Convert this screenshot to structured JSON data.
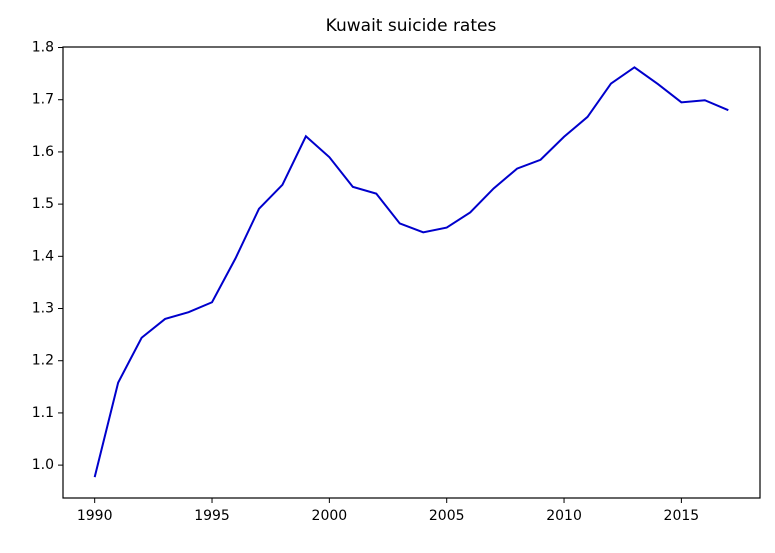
{
  "chart_data": {
    "type": "line",
    "title": "Kuwait suicide rates",
    "x": [
      1990,
      1991,
      1992,
      1993,
      1994,
      1995,
      1996,
      1997,
      1998,
      1999,
      2000,
      2001,
      2002,
      2003,
      2004,
      2005,
      2006,
      2007,
      2008,
      2009,
      2010,
      2011,
      2012,
      2013,
      2014,
      2015,
      2016,
      2017
    ],
    "series": [
      {
        "name": "Kuwait",
        "color": "#0000cc",
        "values": [
          0.977,
          1.158,
          1.244,
          1.28,
          1.293,
          1.312,
          1.396,
          1.491,
          1.537,
          1.63,
          1.59,
          1.533,
          1.52,
          1.463,
          1.446,
          1.455,
          1.484,
          1.53,
          1.568,
          1.585,
          1.629,
          1.667,
          1.731,
          1.762,
          1.73,
          1.695,
          1.699,
          1.68
        ]
      }
    ],
    "xlim": [
      1988.65,
      2018.35
    ],
    "xticks": [
      1990,
      1995,
      2000,
      2005,
      2010,
      2015
    ],
    "ylim": [
      0.937,
      1.801
    ],
    "yticks": [
      {
        "value": 1.0,
        "label": "1.0"
      },
      1.1,
      1.2,
      1.3,
      1.4,
      1.5,
      1.6,
      1.7,
      1.8
    ]
  }
}
